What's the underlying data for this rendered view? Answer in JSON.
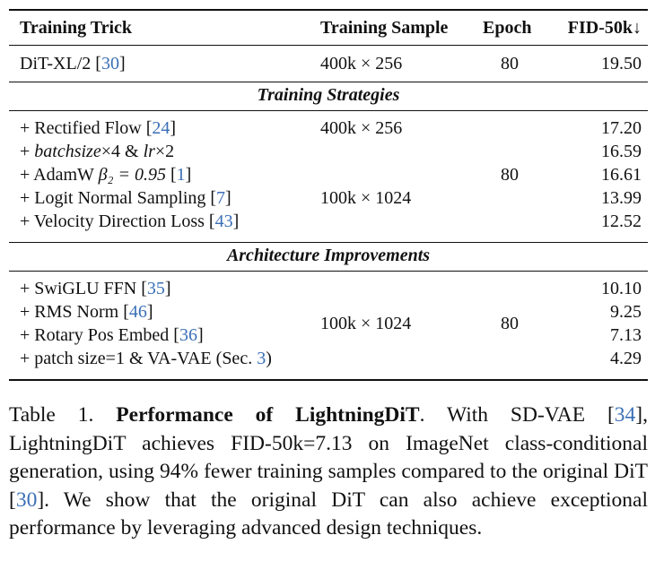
{
  "header": {
    "trick": "Training Trick",
    "sample": "Training Sample",
    "epoch": "Epoch",
    "fid": "FID-50k↓"
  },
  "baseline": {
    "name": "DiT-XL/2",
    "cite": "30",
    "sample": "400k × 256",
    "epoch": "80",
    "fid": "19.50"
  },
  "section1": {
    "title": "Training Strategies",
    "rows": [
      {
        "prefix": "+ Rectified Flow",
        "cite": "24",
        "fid": "17.20"
      },
      {
        "prefix": "+ ",
        "ital1": "batchsize",
        "mid": "×4 & ",
        "ital2": "lr",
        "tail": "×2",
        "fid": "16.59"
      },
      {
        "prefix": "+ AdamW ",
        "math": "β₂ = 0.95",
        "cite": "1",
        "fid": "16.61"
      },
      {
        "prefix": "+ Logit Normal Sampling",
        "cite": "7",
        "fid": "13.99"
      },
      {
        "prefix": "+ Velocity Direction Loss",
        "cite": "43",
        "fid": "12.52"
      }
    ],
    "sample_top": "400k × 256",
    "sample_mid": "100k × 1024",
    "epoch": "80"
  },
  "section2": {
    "title": "Architecture Improvements",
    "rows": [
      {
        "prefix": "+ SwiGLU FFN",
        "cite": "35",
        "fid": "10.10"
      },
      {
        "prefix": "+ RMS Norm",
        "cite": "46",
        "fid": "9.25"
      },
      {
        "prefix": "+ Rotary Pos Embed",
        "cite": "36",
        "fid": "7.13"
      },
      {
        "prefix": "+ patch size=1 & VA-VAE (Sec.",
        "cite": "3",
        "suffix": ")",
        "fid": "4.29"
      }
    ],
    "sample": "100k × 1024",
    "epoch": "80"
  },
  "caption": {
    "label": "Table 1.",
    "title": "Performance of LightningDiT",
    "text1": ". With SD-VAE [",
    "cite1": "34",
    "text2": "], LightningDiT achieves FID-50k=7.13 on ImageNet class-conditional generation, using 94% fewer training samples compared to the original DiT [",
    "cite2": "30",
    "text3": "]. We show that the original DiT can also achieve exceptional performance by leveraging advanced design techniques."
  }
}
